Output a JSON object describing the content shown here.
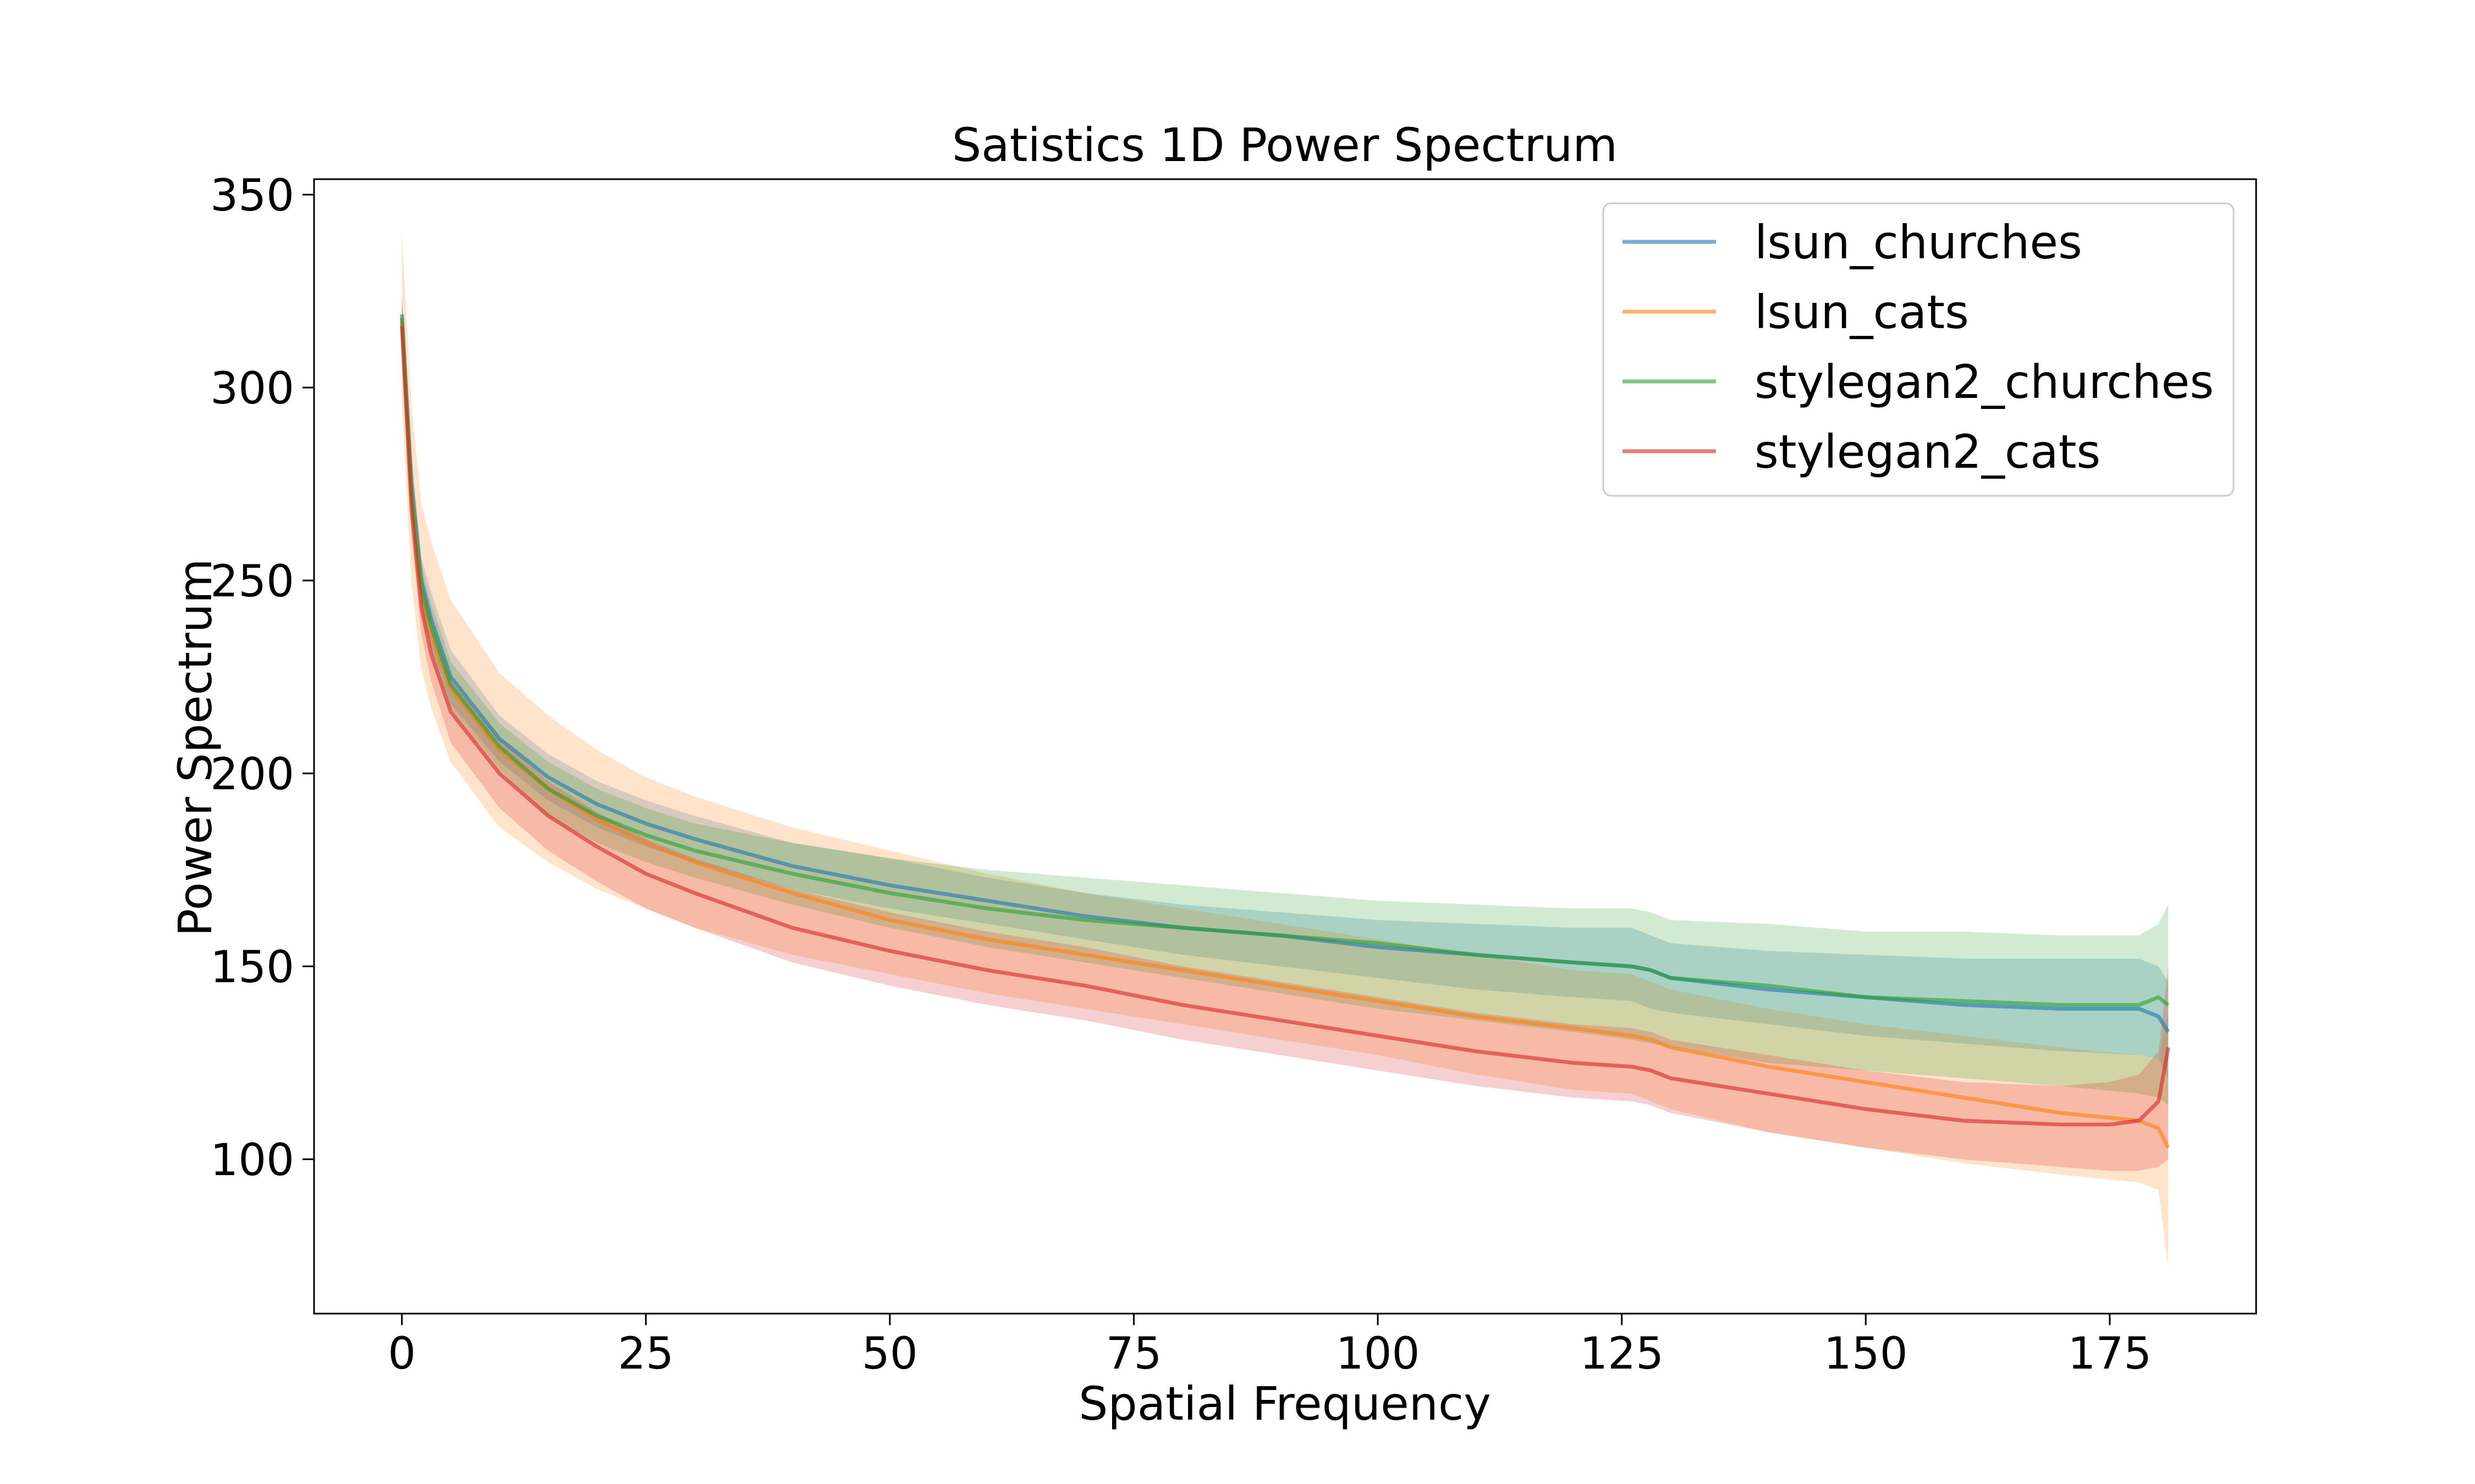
{
  "chart_data": {
    "type": "line",
    "title": "Satistics 1D Power Spectrum",
    "xlabel": "Spatial Frequency",
    "ylabel": "Power Spectrum",
    "xlim": [
      -9,
      190
    ],
    "ylim": [
      60,
      354
    ],
    "xticks": [
      0,
      25,
      50,
      75,
      100,
      125,
      150,
      175
    ],
    "yticks": [
      100,
      150,
      200,
      250,
      300,
      350
    ],
    "grid": false,
    "legend_position": "top-right",
    "series": [
      {
        "name": "lsun_churches",
        "color": "#1f77b4",
        "x": [
          0,
          1,
          2,
          3,
          5,
          10,
          15,
          20,
          25,
          30,
          40,
          50,
          60,
          70,
          80,
          90,
          100,
          110,
          120,
          126,
          128,
          130,
          140,
          150,
          160,
          170,
          178,
          180,
          181
        ],
        "y": [
          319,
          275,
          250,
          240,
          225,
          209,
          199,
          192,
          187,
          183,
          176,
          171,
          167,
          163,
          160,
          158,
          155,
          153,
          151,
          150,
          149,
          147,
          144,
          142,
          140,
          139,
          139,
          137,
          133
        ],
        "lower": [
          314,
          268,
          245,
          233,
          218,
          203,
          193,
          186,
          181,
          177,
          170,
          165,
          161,
          157,
          153,
          150,
          147,
          144,
          142,
          141,
          139,
          138,
          135,
          132,
          130,
          128,
          127,
          126,
          121
        ],
        "upper": [
          324,
          282,
          256,
          247,
          232,
          215,
          205,
          198,
          193,
          189,
          182,
          178,
          173,
          169,
          166,
          164,
          162,
          161,
          160,
          160,
          158,
          156,
          154,
          153,
          152,
          152,
          152,
          150,
          146
        ]
      },
      {
        "name": "lsun_cats",
        "color": "#ff7f0e",
        "x": [
          0,
          1,
          2,
          3,
          5,
          10,
          15,
          20,
          25,
          30,
          40,
          50,
          60,
          70,
          80,
          90,
          100,
          110,
          120,
          126,
          128,
          130,
          140,
          150,
          160,
          170,
          178,
          180,
          181
        ],
        "y": [
          318,
          272,
          247,
          236,
          222,
          206,
          196,
          188,
          182,
          177,
          169,
          162,
          157,
          153,
          149,
          145,
          141,
          137,
          134,
          132,
          131,
          129,
          124,
          120,
          116,
          112,
          110,
          108,
          103
        ],
        "lower": [
          296,
          249,
          227,
          217,
          203,
          186,
          177,
          170,
          165,
          160,
          153,
          148,
          143,
          139,
          135,
          131,
          127,
          122,
          118,
          117,
          115,
          113,
          107,
          103,
          99,
          96,
          94,
          92,
          72
        ],
        "upper": [
          340,
          295,
          270,
          260,
          245,
          226,
          215,
          206,
          199,
          194,
          186,
          180,
          174,
          169,
          165,
          161,
          157,
          153,
          149,
          148,
          146,
          144,
          139,
          135,
          132,
          129,
          127,
          126,
          138
        ]
      },
      {
        "name": "stylegan2_churches",
        "color": "#2ca02c",
        "x": [
          0,
          1,
          2,
          3,
          5,
          10,
          15,
          20,
          25,
          30,
          40,
          50,
          60,
          70,
          80,
          90,
          100,
          110,
          120,
          126,
          128,
          130,
          140,
          150,
          160,
          170,
          178,
          180,
          181
        ],
        "y": [
          318,
          272,
          248,
          238,
          223,
          207,
          196,
          189,
          184,
          180,
          174,
          169,
          165,
          162,
          160,
          158,
          156,
          153,
          151,
          150,
          149,
          147,
          145,
          142,
          141,
          140,
          140,
          142,
          140
        ],
        "lower": [
          313,
          266,
          242,
          232,
          217,
          201,
          189,
          182,
          177,
          173,
          166,
          160,
          155,
          151,
          147,
          143,
          139,
          136,
          133,
          131,
          130,
          129,
          125,
          123,
          121,
          119,
          117,
          116,
          114
        ],
        "upper": [
          323,
          278,
          254,
          244,
          229,
          213,
          203,
          196,
          191,
          187,
          182,
          178,
          175,
          173,
          171,
          169,
          167,
          166,
          165,
          165,
          164,
          162,
          161,
          159,
          159,
          158,
          158,
          161,
          166
        ]
      },
      {
        "name": "stylegan2_cats",
        "color": "#d62728",
        "x": [
          0,
          1,
          2,
          3,
          5,
          10,
          15,
          20,
          25,
          30,
          40,
          50,
          60,
          70,
          80,
          90,
          100,
          110,
          120,
          126,
          128,
          130,
          140,
          150,
          160,
          170,
          175,
          178,
          180,
          181
        ],
        "y": [
          316,
          268,
          243,
          231,
          216,
          200,
          189,
          181,
          174,
          169,
          160,
          154,
          149,
          145,
          140,
          136,
          132,
          128,
          125,
          124,
          123,
          121,
          117,
          113,
          110,
          109,
          109,
          110,
          115,
          129
        ],
        "lower": [
          310,
          262,
          236,
          224,
          208,
          191,
          180,
          172,
          165,
          160,
          151,
          145,
          140,
          136,
          131,
          127,
          123,
          119,
          116,
          115,
          114,
          112,
          107,
          103,
          100,
          98,
          97,
          97,
          98,
          100
        ],
        "upper": [
          322,
          274,
          250,
          238,
          224,
          209,
          198,
          190,
          183,
          178,
          170,
          164,
          159,
          155,
          150,
          146,
          142,
          138,
          135,
          134,
          133,
          131,
          127,
          123,
          120,
          119,
          120,
          122,
          128,
          150
        ]
      }
    ]
  }
}
